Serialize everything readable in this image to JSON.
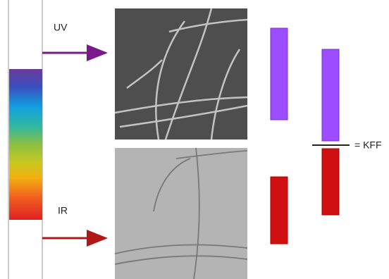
{
  "labels": {
    "uv": "UV",
    "ir": "IR",
    "result": "= KFF"
  }
}
